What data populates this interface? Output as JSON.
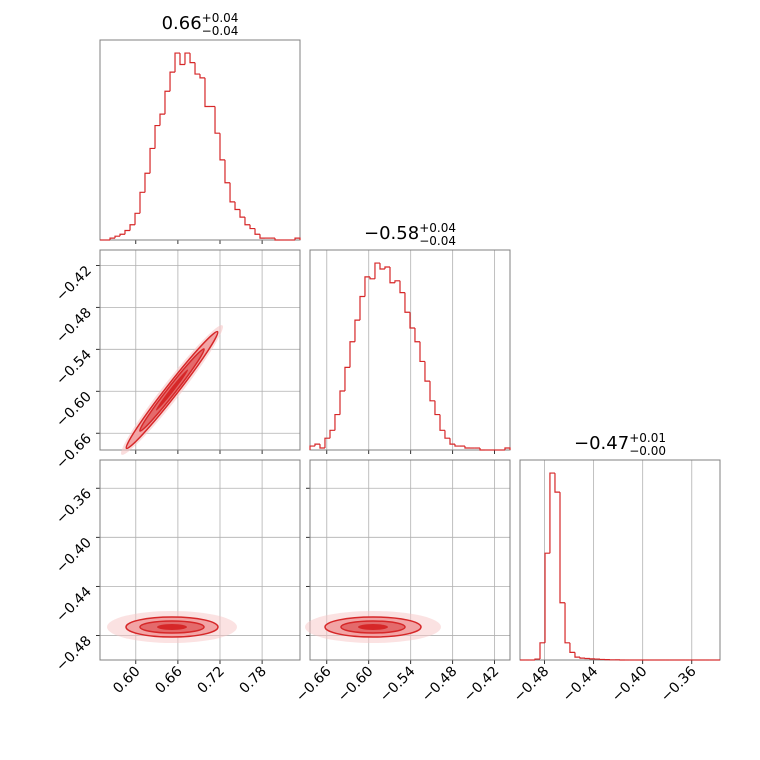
{
  "chart_data": {
    "type": "corner",
    "color": "#d62728",
    "grid": true,
    "params": [
      {
        "title": {
          "value": "0.66",
          "plus": "+0.04",
          "minus": "−0.04"
        },
        "lim": [
          0.549,
          0.834
        ],
        "ticks": [
          {
            "value": 0.6,
            "label": "0.60"
          },
          {
            "value": 0.66,
            "label": "0.66"
          },
          {
            "value": 0.72,
            "label": "0.72"
          },
          {
            "value": 0.78,
            "label": "0.78"
          }
        ],
        "bins": [
          0.549,
          0.5561,
          0.5633,
          0.5704,
          0.5775,
          0.5846,
          0.5918,
          0.5989,
          0.606,
          0.6131,
          0.6203,
          0.6274,
          0.6345,
          0.6416,
          0.6488,
          0.6559,
          0.663,
          0.6701,
          0.6773,
          0.6844,
          0.6915,
          0.6986,
          0.7058,
          0.7129,
          0.72,
          0.7271,
          0.7343,
          0.7414,
          0.7485,
          0.7556,
          0.7628,
          0.7699,
          0.777,
          0.7841,
          0.7913,
          0.7984,
          0.8055,
          0.8126,
          0.8198,
          0.8269,
          0.834
        ],
        "counts": [
          0,
          0,
          1,
          2,
          3,
          5,
          8,
          14,
          25,
          35,
          48,
          60,
          66,
          78,
          88,
          98,
          92,
          98,
          93,
          87,
          85,
          70,
          70,
          56,
          42,
          30,
          20,
          16,
          12,
          8,
          6,
          3,
          1,
          1,
          1,
          0,
          0,
          0,
          0,
          1
        ]
      },
      {
        "title": {
          "value": "−0.58",
          "plus": "+0.04",
          "minus": "−0.04"
        },
        "lim": [
          -0.684,
          -0.398
        ],
        "ticks": [
          {
            "value": -0.66,
            "label": "−0.66"
          },
          {
            "value": -0.6,
            "label": "−0.60"
          },
          {
            "value": -0.54,
            "label": "−0.54"
          },
          {
            "value": -0.48,
            "label": "−0.48"
          },
          {
            "value": -0.42,
            "label": "−0.42"
          }
        ],
        "bins": [
          -0.684,
          -0.6769,
          -0.6697,
          -0.6626,
          -0.6554,
          -0.6483,
          -0.6411,
          -0.634,
          -0.6268,
          -0.6197,
          -0.6125,
          -0.6054,
          -0.5982,
          -0.5911,
          -0.5839,
          -0.5768,
          -0.5696,
          -0.5625,
          -0.5553,
          -0.5482,
          -0.541,
          -0.5339,
          -0.5267,
          -0.5196,
          -0.5124,
          -0.5053,
          -0.4981,
          -0.491,
          -0.4838,
          -0.4767,
          -0.4695,
          -0.4624,
          -0.4552,
          -0.4481,
          -0.4409,
          -0.4338,
          -0.4266,
          -0.4195,
          -0.4123,
          -0.4052,
          -0.398
        ],
        "counts": [
          2,
          3,
          1,
          6,
          10,
          18,
          30,
          42,
          55,
          66,
          78,
          88,
          87,
          95,
          92,
          93,
          85,
          86,
          80,
          70,
          62,
          55,
          45,
          35,
          25,
          18,
          10,
          6,
          3,
          2,
          2,
          1,
          1,
          1,
          0,
          0,
          0,
          0,
          0,
          1
        ]
      },
      {
        "title": {
          "value": "−0.47",
          "plus": "+0.01",
          "minus": "−0.00"
        },
        "lim": [
          -0.5,
          -0.337
        ],
        "ticks": [
          {
            "value": -0.48,
            "label": "−0.48"
          },
          {
            "value": -0.44,
            "label": "−0.44"
          },
          {
            "value": -0.4,
            "label": "−0.40"
          },
          {
            "value": -0.36,
            "label": "−0.36"
          }
        ],
        "bins": [
          -0.5,
          -0.4959,
          -0.4919,
          -0.4878,
          -0.4837,
          -0.4796,
          -0.4756,
          -0.4715,
          -0.4674,
          -0.4633,
          -0.4593,
          -0.4552,
          -0.4511,
          -0.447,
          -0.443,
          -0.4389,
          -0.4348,
          -0.4307,
          -0.4267,
          -0.4226,
          -0.4185,
          -0.4144,
          -0.4104,
          -0.4063,
          -0.4022,
          -0.3981,
          -0.3941,
          -0.39,
          -0.3859,
          -0.3818,
          -0.3778,
          -0.3737,
          -0.3696,
          -0.3655,
          -0.3615,
          -0.3574,
          -0.3533,
          -0.3492,
          -0.3452,
          -0.3411,
          -0.337
        ],
        "counts": [
          0,
          0,
          0,
          5,
          90,
          560,
          980,
          880,
          300,
          90,
          40,
          15,
          10,
          8,
          6,
          5,
          3,
          2,
          1,
          1,
          0,
          0,
          0,
          0,
          0,
          0,
          0,
          0,
          0,
          0,
          0,
          0,
          0,
          0,
          0,
          0,
          0,
          0,
          0,
          0
        ]
      }
    ]
  }
}
